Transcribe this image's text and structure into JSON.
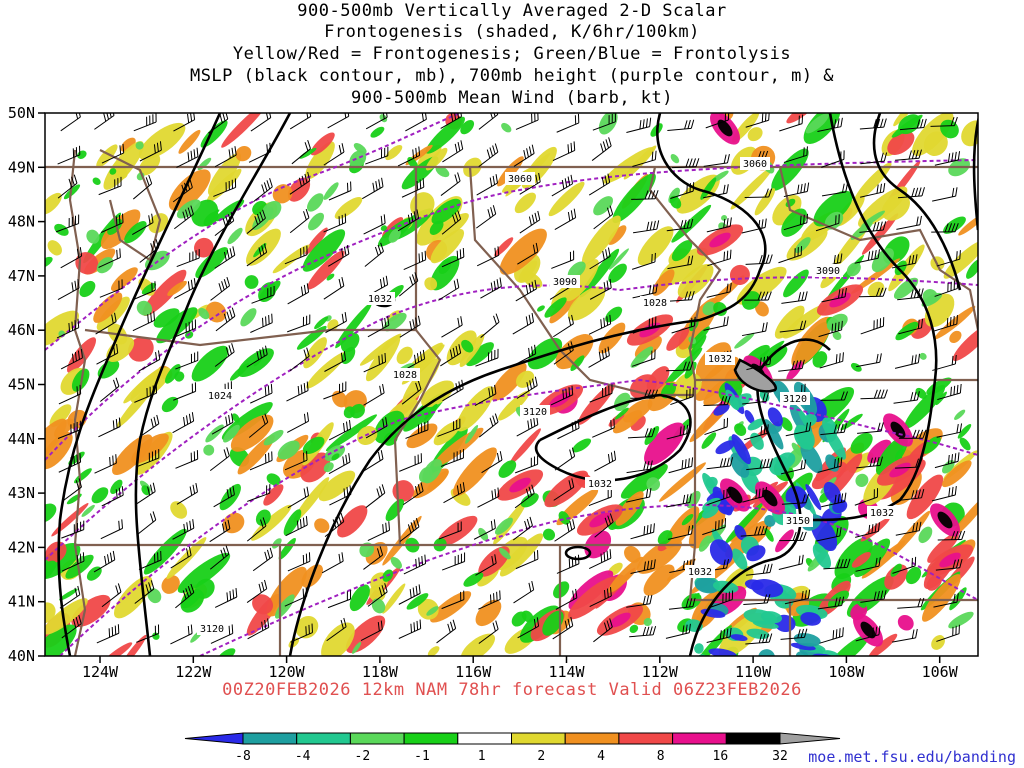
{
  "title": {
    "line1": "900-500mb Vertically Averaged 2-D Scalar",
    "line2": "Frontogenesis (shaded, K/6hr/100km)",
    "line3": "Yellow/Red = Frontogenesis;  Green/Blue = Frontolysis",
    "line4": "MSLP (black contour, mb), 700mb height (purple contour, m) &",
    "line5": "900-500mb Mean Wind (barb, kt)"
  },
  "valid_text": "00Z20FEB2026 12km NAM 78hr forecast Valid 06Z23FEB2026",
  "site_url": "moe.met.fsu.edu/banding",
  "axes": {
    "lat_labels": [
      "50N",
      "49N",
      "48N",
      "47N",
      "46N",
      "45N",
      "44N",
      "43N",
      "42N",
      "41N",
      "40N"
    ],
    "lon_labels": [
      "124W",
      "122W",
      "120W",
      "118W",
      "116W",
      "114W",
      "112W",
      "110W",
      "108W",
      "106W"
    ]
  },
  "colorbar": {
    "labels": [
      "-8",
      "-4",
      "-2",
      "-1",
      "1",
      "2",
      "4",
      "8",
      "16",
      "32"
    ],
    "colors": [
      "#2a2ae8",
      "#1e9fa0",
      "#22c890",
      "#5ad85a",
      "#18d018",
      "#ffffff",
      "#e0d830",
      "#f09020",
      "#f04848",
      "#e8108c",
      "#000000",
      "#a0a0a0"
    ]
  },
  "contours": {
    "mslp_labels": [
      "1024",
      "1028",
      "1028",
      "1032",
      "1032",
      "1032",
      "1032",
      "1032"
    ],
    "height_labels": [
      "3060",
      "3060",
      "3090",
      "3090",
      "3120",
      "3120",
      "3120",
      "3150"
    ],
    "mslp_color": "#000000",
    "height_color": "#a020c0"
  },
  "colors": {
    "state_border": "#806050",
    "frame": "#000000"
  }
}
